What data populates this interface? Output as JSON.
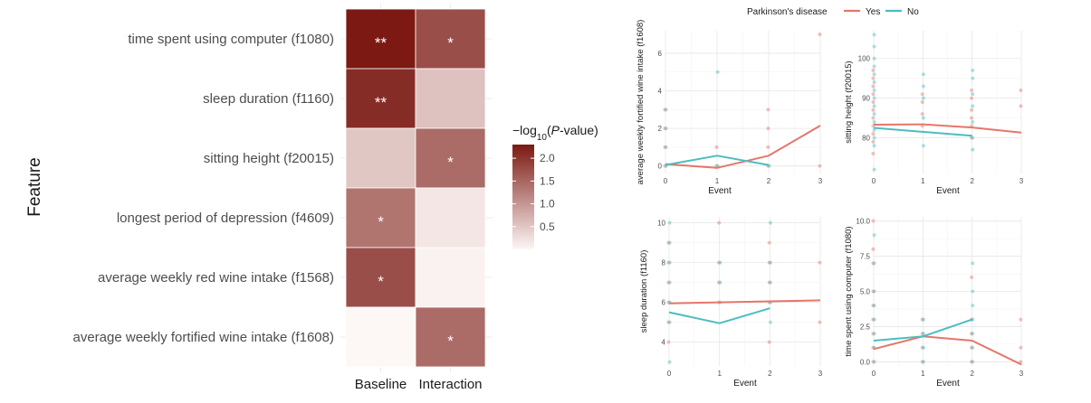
{
  "chart_data": [
    {
      "type": "heatmap",
      "ylabel": "Feature",
      "x_categories": [
        "Baseline",
        "Interaction"
      ],
      "y_categories": [
        "time spent using computer (f1080)",
        "sleep duration (f1160)",
        "sitting height (f20015)",
        "longest period of depression (f4609)",
        "average weekly red wine intake (f1568)",
        "average weekly fortified wine intake (f1608)"
      ],
      "values": [
        [
          2.3,
          1.75
        ],
        [
          2.1,
          0.55
        ],
        [
          0.5,
          1.45
        ],
        [
          1.35,
          0.18
        ],
        [
          1.75,
          0.05
        ],
        [
          0.0,
          1.45
        ]
      ],
      "annotations": [
        [
          "**",
          "*"
        ],
        [
          "**",
          ""
        ],
        [
          "",
          "*"
        ],
        [
          "*",
          ""
        ],
        [
          "*",
          ""
        ],
        [
          "",
          "*"
        ]
      ],
      "colorbar": {
        "title_prefix": "−log",
        "title_sub": "10",
        "title_open": "(",
        "title_italic": "P",
        "title_suffix": "-value)",
        "ticks": [
          "0.5",
          "1.0",
          "1.5",
          "2.0"
        ],
        "tick_values": [
          0.5,
          1.0,
          1.5,
          2.0
        ],
        "range": [
          0,
          2.3
        ],
        "color_low": "#fdf7f6",
        "color_high": "#7b1912"
      }
    },
    {
      "type": "line",
      "legend": {
        "title": "Parkinson's disease",
        "placement": "top",
        "items": [
          {
            "label": "Yes",
            "color": "#e5766a"
          },
          {
            "label": "No",
            "color": "#4bbdc2"
          }
        ]
      },
      "panels": [
        {
          "ylabel": "average weekly fortified wine intake (f1608)",
          "xlabel": "Event",
          "xlim": [
            0,
            3
          ],
          "ylim": [
            -0.4,
            7.2
          ],
          "x_ticks": [
            "0",
            "1",
            "2",
            "3"
          ],
          "y_ticks": [
            "0",
            "2",
            "4",
            "6"
          ],
          "y_tick_values": [
            0,
            2,
            4,
            6
          ],
          "series": [
            {
              "name": "Yes",
              "x": [
                0,
                1,
                2,
                3
              ],
              "y": [
                0.1,
                -0.1,
                0.55,
                2.15
              ]
            },
            {
              "name": "No",
              "x": [
                0,
                1,
                2
              ],
              "y": [
                0.05,
                0.55,
                0.05
              ]
            }
          ],
          "points_yes": [
            [
              0,
              3
            ],
            [
              0,
              2
            ],
            [
              0,
              1
            ],
            [
              0,
              0
            ],
            [
              1,
              1
            ],
            [
              1,
              0
            ],
            [
              2,
              3
            ],
            [
              2,
              2
            ],
            [
              2,
              1
            ],
            [
              2,
              0
            ],
            [
              3,
              7
            ],
            [
              3,
              0
            ]
          ],
          "points_no": [
            [
              0,
              3
            ],
            [
              0,
              2
            ],
            [
              0,
              1
            ],
            [
              0,
              0
            ],
            [
              1,
              5
            ],
            [
              1,
              0
            ],
            [
              2,
              0
            ]
          ]
        },
        {
          "ylabel": "sitting height (f20015)",
          "xlabel": "Event",
          "xlim": [
            0,
            3
          ],
          "ylim": [
            71,
            107
          ],
          "x_ticks": [
            "0",
            "1",
            "2",
            "3"
          ],
          "y_ticks": [
            "80",
            "90",
            "100"
          ],
          "y_tick_values": [
            80,
            90,
            100
          ],
          "series": [
            {
              "name": "Yes",
              "x": [
                0,
                1,
                2,
                3
              ],
              "y": [
                83.3,
                83.4,
                82.6,
                81.3
              ]
            },
            {
              "name": "No",
              "x": [
                0,
                2
              ],
              "y": [
                82.5,
                80.5
              ]
            }
          ],
          "points_yes": [
            [
              0,
              76
            ],
            [
              0,
              79
            ],
            [
              0,
              81
            ],
            [
              0,
              83
            ],
            [
              0,
              85
            ],
            [
              0,
              87
            ],
            [
              0,
              89
            ],
            [
              0,
              91
            ],
            [
              0,
              93
            ],
            [
              0,
              95
            ],
            [
              0,
              97
            ],
            [
              1,
              83
            ],
            [
              1,
              86
            ],
            [
              1,
              89
            ],
            [
              1,
              91
            ],
            [
              2,
              80
            ],
            [
              2,
              83
            ],
            [
              2,
              85
            ],
            [
              2,
              87
            ],
            [
              2,
              90
            ],
            [
              2,
              92
            ],
            [
              3,
              88
            ],
            [
              3,
              92
            ]
          ],
          "points_no": [
            [
              0,
              72
            ],
            [
              0,
              78
            ],
            [
              0,
              80
            ],
            [
              0,
              82
            ],
            [
              0,
              84
            ],
            [
              0,
              86
            ],
            [
              0,
              88
            ],
            [
              0,
              90
            ],
            [
              0,
              92
            ],
            [
              0,
              94
            ],
            [
              0,
              96
            ],
            [
              0,
              98
            ],
            [
              0,
              100
            ],
            [
              0,
              103
            ],
            [
              0,
              106
            ],
            [
              1,
              78
            ],
            [
              1,
              85
            ],
            [
              1,
              90
            ],
            [
              1,
              93
            ],
            [
              1,
              96
            ],
            [
              2,
              77
            ],
            [
              2,
              80
            ],
            [
              2,
              84
            ],
            [
              2,
              88
            ],
            [
              2,
              91
            ],
            [
              2,
              95
            ],
            [
              2,
              97
            ]
          ]
        },
        {
          "ylabel": "sleep duration (f1160)",
          "xlabel": "Event",
          "xlim": [
            0,
            3
          ],
          "ylim": [
            2.8,
            10.3
          ],
          "x_ticks": [
            "0",
            "1",
            "2",
            "3"
          ],
          "y_ticks": [
            "4",
            "6",
            "8",
            "10"
          ],
          "y_tick_values": [
            4,
            6,
            8,
            10
          ],
          "series": [
            {
              "name": "Yes",
              "x": [
                0,
                1,
                2,
                3
              ],
              "y": [
                5.95,
                6.0,
                6.05,
                6.1
              ]
            },
            {
              "name": "No",
              "x": [
                0,
                1,
                2
              ],
              "y": [
                5.5,
                4.95,
                5.7
              ]
            }
          ],
          "points_yes": [
            [
              0,
              4
            ],
            [
              0,
              5
            ],
            [
              0,
              6
            ],
            [
              0,
              7
            ],
            [
              0,
              8
            ],
            [
              0,
              9
            ],
            [
              1,
              6
            ],
            [
              1,
              7
            ],
            [
              1,
              8
            ],
            [
              1,
              10
            ],
            [
              2,
              4
            ],
            [
              2,
              6
            ],
            [
              2,
              7
            ],
            [
              2,
              8
            ],
            [
              2,
              9
            ],
            [
              3,
              5
            ],
            [
              3,
              8
            ]
          ],
          "points_no": [
            [
              0,
              3
            ],
            [
              0,
              5
            ],
            [
              0,
              6
            ],
            [
              0,
              7
            ],
            [
              0,
              8
            ],
            [
              0,
              9
            ],
            [
              0,
              10
            ],
            [
              1,
              6
            ],
            [
              1,
              7
            ],
            [
              1,
              8
            ],
            [
              2,
              5
            ],
            [
              2,
              6
            ],
            [
              2,
              7
            ],
            [
              2,
              8
            ],
            [
              2,
              10
            ]
          ]
        },
        {
          "ylabel": "time spent using computer (f1080)",
          "xlabel": "Event",
          "xlim": [
            0,
            3
          ],
          "ylim": [
            -0.3,
            10.3
          ],
          "x_ticks": [
            "0",
            "1",
            "2",
            "3"
          ],
          "y_ticks": [
            "0.0",
            "2.5",
            "5.0",
            "7.5",
            "10.0"
          ],
          "y_tick_values": [
            0,
            2.5,
            5,
            7.5,
            10
          ],
          "series": [
            {
              "name": "Yes",
              "x": [
                0,
                1,
                2,
                3
              ],
              "y": [
                0.9,
                1.8,
                1.5,
                -0.2
              ]
            },
            {
              "name": "No",
              "x": [
                0,
                1,
                2
              ],
              "y": [
                1.5,
                1.8,
                3.0
              ]
            }
          ],
          "points_yes": [
            [
              0,
              0
            ],
            [
              0,
              1
            ],
            [
              0,
              2
            ],
            [
              0,
              3
            ],
            [
              0,
              4
            ],
            [
              0,
              5
            ],
            [
              0,
              7
            ],
            [
              0,
              8
            ],
            [
              0,
              10
            ],
            [
              1,
              0
            ],
            [
              1,
              1
            ],
            [
              1,
              2
            ],
            [
              1,
              3
            ],
            [
              2,
              0
            ],
            [
              2,
              1
            ],
            [
              2,
              2
            ],
            [
              2,
              3
            ],
            [
              2,
              6
            ],
            [
              3,
              0
            ],
            [
              3,
              1
            ],
            [
              3,
              3
            ]
          ],
          "points_no": [
            [
              0,
              0
            ],
            [
              0,
              1
            ],
            [
              0,
              2
            ],
            [
              0,
              3
            ],
            [
              0,
              4
            ],
            [
              0,
              5
            ],
            [
              0,
              7
            ],
            [
              0,
              9
            ],
            [
              1,
              0
            ],
            [
              1,
              1
            ],
            [
              1,
              2
            ],
            [
              1,
              3
            ],
            [
              2,
              0
            ],
            [
              2,
              1
            ],
            [
              2,
              2
            ],
            [
              2,
              3
            ],
            [
              2,
              4
            ],
            [
              2,
              5
            ],
            [
              2,
              7
            ]
          ]
        }
      ]
    }
  ]
}
